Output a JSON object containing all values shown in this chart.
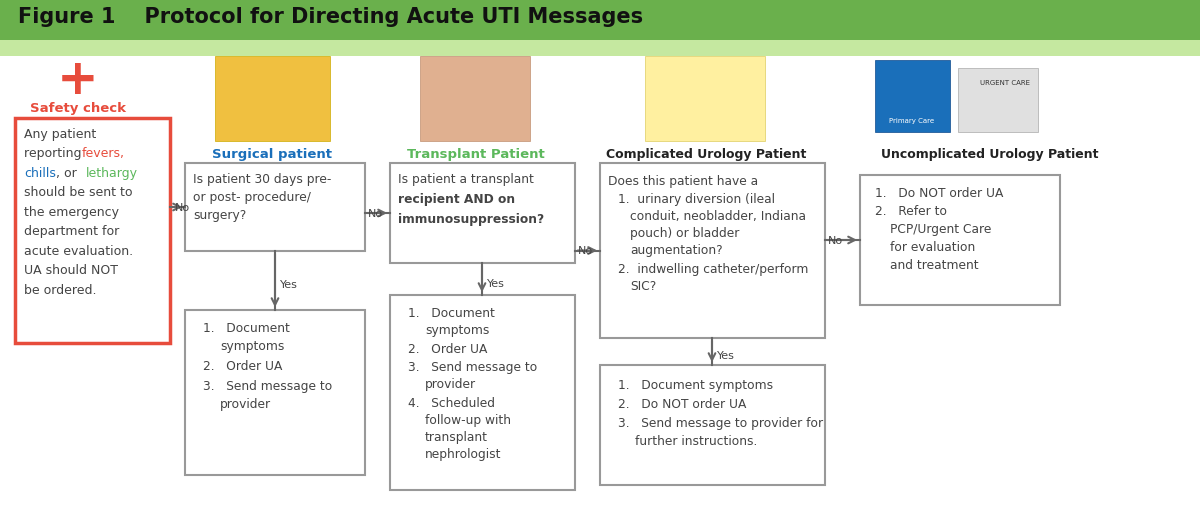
{
  "title": "Figure 1    Protocol for Directing Acute UTI Messages",
  "title_bg": "#6ab04c",
  "bg_color": "#ffffff",
  "safety_check_label": "Safety check",
  "safety_check_color": "#e74c3c",
  "col_headers": [
    "Surgical patient",
    "Transplant Patient",
    "Complicated Urology Patient",
    "Uncomplicated Urology Patient"
  ],
  "col_header_colors": [
    "#1a6fba",
    "#5cb85c",
    "#222222",
    "#222222"
  ],
  "safety_box_border": "#e74c3c",
  "arrow_color": "#666666",
  "box_edge_color": "#999999",
  "cross_color": "#e74c3c",
  "fevers_color": "#e74c3c",
  "chills_color": "#1a6fba",
  "lethargy_color": "#5cb85c",
  "text_color": "#444444",
  "title_fontsize": 15,
  "body_fontsize": 8.5
}
